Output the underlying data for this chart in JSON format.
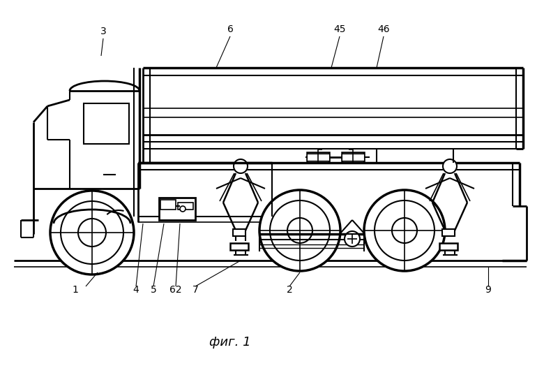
{
  "caption": "фиг. 1",
  "bg_color": "#ffffff",
  "line_color": "#000000",
  "figsize": [
    7.8,
    5.24
  ],
  "dpi": 100
}
